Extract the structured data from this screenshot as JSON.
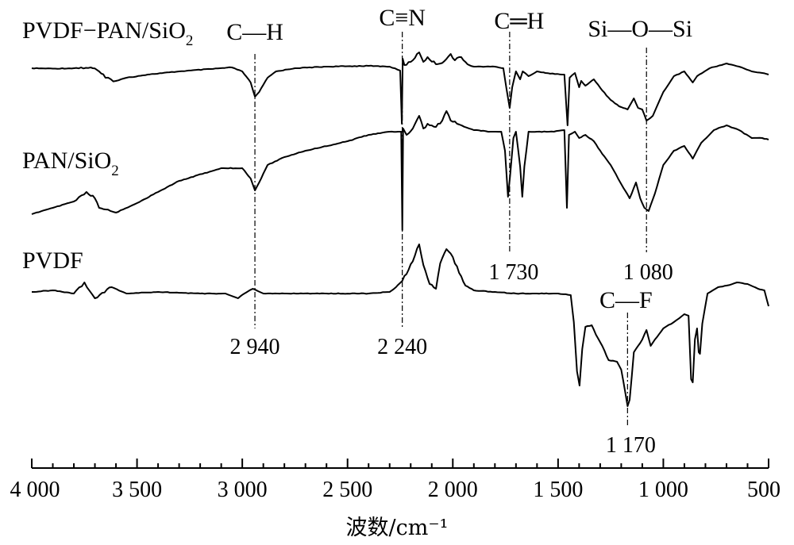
{
  "chart_data": {
    "type": "line",
    "title": "",
    "xlabel": "波数/cm⁻¹",
    "ylabel": "",
    "x_reversed": true,
    "xlim": [
      4000,
      500
    ],
    "x_ticks": [
      {
        "value": 4000,
        "label": "4 000"
      },
      {
        "value": 3500,
        "label": "3 500"
      },
      {
        "value": 3000,
        "label": "3 000"
      },
      {
        "value": 2500,
        "label": "2 500"
      },
      {
        "value": 2000,
        "label": "2 000"
      },
      {
        "value": 1500,
        "label": "1 500"
      },
      {
        "value": 1000,
        "label": "1 000"
      },
      {
        "value": 500,
        "label": "500"
      }
    ],
    "series": [
      {
        "name": "PVDF−PAN/SiO",
        "name_sub": "2",
        "offset": 0,
        "points": [
          [
            4000,
            0
          ],
          [
            3900,
            0.5
          ],
          [
            3800,
            0
          ],
          [
            3720,
            -1
          ],
          [
            3680,
            4
          ],
          [
            3650,
            12
          ],
          [
            3600,
            16
          ],
          [
            3550,
            12
          ],
          [
            3450,
            8
          ],
          [
            3300,
            4
          ],
          [
            3150,
            1
          ],
          [
            3050,
            -1
          ],
          [
            3000,
            4
          ],
          [
            2960,
            18
          ],
          [
            2940,
            36
          ],
          [
            2920,
            30
          ],
          [
            2880,
            12
          ],
          [
            2840,
            4
          ],
          [
            2750,
            0
          ],
          [
            2600,
            -2
          ],
          [
            2400,
            -3
          ],
          [
            2300,
            -2
          ],
          [
            2250,
            3
          ],
          [
            2242,
            70
          ],
          [
            2238,
            -12
          ],
          [
            2230,
            -4
          ],
          [
            2200,
            -8
          ],
          [
            2160,
            -20
          ],
          [
            2140,
            -8
          ],
          [
            2120,
            -14
          ],
          [
            2080,
            -5
          ],
          [
            2040,
            -9
          ],
          [
            2010,
            -18
          ],
          [
            1990,
            -10
          ],
          [
            1960,
            -14
          ],
          [
            1930,
            -5
          ],
          [
            1900,
            -2
          ],
          [
            1800,
            -2
          ],
          [
            1760,
            0
          ],
          [
            1745,
            26
          ],
          [
            1730,
            50
          ],
          [
            1718,
            24
          ],
          [
            1700,
            4
          ],
          [
            1680,
            14
          ],
          [
            1668,
            4
          ],
          [
            1640,
            10
          ],
          [
            1600,
            4
          ],
          [
            1560,
            6
          ],
          [
            1470,
            8
          ],
          [
            1455,
            72
          ],
          [
            1445,
            12
          ],
          [
            1420,
            6
          ],
          [
            1400,
            24
          ],
          [
            1390,
            16
          ],
          [
            1370,
            22
          ],
          [
            1330,
            14
          ],
          [
            1290,
            28
          ],
          [
            1250,
            40
          ],
          [
            1210,
            48
          ],
          [
            1170,
            52
          ],
          [
            1140,
            38
          ],
          [
            1120,
            50
          ],
          [
            1100,
            52
          ],
          [
            1080,
            66
          ],
          [
            1050,
            60
          ],
          [
            1000,
            30
          ],
          [
            950,
            10
          ],
          [
            900,
            4
          ],
          [
            860,
            18
          ],
          [
            840,
            10
          ],
          [
            780,
            0
          ],
          [
            700,
            -6
          ],
          [
            640,
            -2
          ],
          [
            580,
            4
          ],
          [
            530,
            6
          ],
          [
            500,
            8
          ]
        ]
      },
      {
        "name": "PAN/SiO",
        "name_sub": "2",
        "offset": 0,
        "points": [
          [
            4000,
            0
          ],
          [
            3900,
            -8
          ],
          [
            3800,
            -16
          ],
          [
            3740,
            -28
          ],
          [
            3700,
            -20
          ],
          [
            3680,
            -8
          ],
          [
            3650,
            -6
          ],
          [
            3600,
            -2
          ],
          [
            3500,
            -14
          ],
          [
            3300,
            -42
          ],
          [
            3100,
            -58
          ],
          [
            3000,
            -58
          ],
          [
            2960,
            -45
          ],
          [
            2940,
            -30
          ],
          [
            2920,
            -40
          ],
          [
            2880,
            -62
          ],
          [
            2800,
            -72
          ],
          [
            2700,
            -80
          ],
          [
            2500,
            -92
          ],
          [
            2400,
            -100
          ],
          [
            2300,
            -104
          ],
          [
            2260,
            -104
          ],
          [
            2245,
            -104
          ],
          [
            2240,
            20
          ],
          [
            2236,
            -108
          ],
          [
            2220,
            -100
          ],
          [
            2190,
            -108
          ],
          [
            2160,
            -124
          ],
          [
            2140,
            -108
          ],
          [
            2120,
            -114
          ],
          [
            2080,
            -110
          ],
          [
            2050,
            -118
          ],
          [
            2030,
            -130
          ],
          [
            2010,
            -118
          ],
          [
            1980,
            -114
          ],
          [
            1900,
            -106
          ],
          [
            1820,
            -104
          ],
          [
            1770,
            -104
          ],
          [
            1752,
            -80
          ],
          [
            1738,
            -22
          ],
          [
            1728,
            -48
          ],
          [
            1712,
            -96
          ],
          [
            1700,
            -104
          ],
          [
            1680,
            -60
          ],
          [
            1670,
            -22
          ],
          [
            1660,
            -60
          ],
          [
            1640,
            -104
          ],
          [
            1600,
            -104
          ],
          [
            1520,
            -104
          ],
          [
            1470,
            -106
          ],
          [
            1458,
            -8
          ],
          [
            1448,
            -100
          ],
          [
            1420,
            -104
          ],
          [
            1400,
            -96
          ],
          [
            1370,
            -100
          ],
          [
            1330,
            -92
          ],
          [
            1290,
            -76
          ],
          [
            1250,
            -62
          ],
          [
            1200,
            -38
          ],
          [
            1160,
            -20
          ],
          [
            1130,
            -40
          ],
          [
            1110,
            -20
          ],
          [
            1090,
            -8
          ],
          [
            1070,
            -4
          ],
          [
            1040,
            -26
          ],
          [
            1000,
            -62
          ],
          [
            950,
            -80
          ],
          [
            900,
            -86
          ],
          [
            860,
            -70
          ],
          [
            820,
            -90
          ],
          [
            760,
            -106
          ],
          [
            700,
            -112
          ],
          [
            640,
            -106
          ],
          [
            580,
            -96
          ],
          [
            530,
            -96
          ],
          [
            500,
            -94
          ]
        ]
      },
      {
        "name": "PVDF",
        "offset": 0,
        "points": [
          [
            4000,
            0
          ],
          [
            3900,
            -2
          ],
          [
            3800,
            2
          ],
          [
            3750,
            -12
          ],
          [
            3700,
            8
          ],
          [
            3620,
            -6
          ],
          [
            3550,
            2
          ],
          [
            3400,
            0
          ],
          [
            3200,
            2
          ],
          [
            3080,
            2
          ],
          [
            3020,
            8
          ],
          [
            2990,
            2
          ],
          [
            2950,
            -4
          ],
          [
            2900,
            2
          ],
          [
            2800,
            2
          ],
          [
            2600,
            2
          ],
          [
            2400,
            2
          ],
          [
            2300,
            0
          ],
          [
            2270,
            -6
          ],
          [
            2240,
            -14
          ],
          [
            2210,
            -28
          ],
          [
            2180,
            -46
          ],
          [
            2160,
            -60
          ],
          [
            2140,
            -34
          ],
          [
            2110,
            -10
          ],
          [
            2080,
            -4
          ],
          [
            2060,
            -36
          ],
          [
            2030,
            -54
          ],
          [
            2000,
            -44
          ],
          [
            1970,
            -24
          ],
          [
            1940,
            -8
          ],
          [
            1900,
            -2
          ],
          [
            1800,
            0
          ],
          [
            1700,
            2
          ],
          [
            1600,
            2
          ],
          [
            1500,
            2
          ],
          [
            1440,
            4
          ],
          [
            1425,
            38
          ],
          [
            1410,
            100
          ],
          [
            1398,
            118
          ],
          [
            1385,
            72
          ],
          [
            1370,
            44
          ],
          [
            1340,
            42
          ],
          [
            1320,
            54
          ],
          [
            1290,
            68
          ],
          [
            1260,
            86
          ],
          [
            1220,
            88
          ],
          [
            1200,
            98
          ],
          [
            1180,
            128
          ],
          [
            1170,
            144
          ],
          [
            1160,
            136
          ],
          [
            1140,
            76
          ],
          [
            1100,
            60
          ],
          [
            1080,
            48
          ],
          [
            1060,
            68
          ],
          [
            1040,
            60
          ],
          [
            1000,
            46
          ],
          [
            950,
            38
          ],
          [
            900,
            28
          ],
          [
            880,
            30
          ],
          [
            868,
            110
          ],
          [
            860,
            114
          ],
          [
            850,
            60
          ],
          [
            840,
            46
          ],
          [
            832,
            76
          ],
          [
            826,
            78
          ],
          [
            815,
            40
          ],
          [
            790,
            2
          ],
          [
            740,
            -6
          ],
          [
            700,
            -8
          ],
          [
            650,
            -12
          ],
          [
            600,
            -10
          ],
          [
            550,
            -4
          ],
          [
            520,
            -2
          ],
          [
            500,
            18
          ]
        ]
      }
    ],
    "annotations": [
      {
        "label": "C—H",
        "wavenumber_label": "2 940",
        "wavenumber": 2940
      },
      {
        "label": "C≡N",
        "wavenumber_label": "2 240",
        "wavenumber": 2240
      },
      {
        "label": "C═H",
        "wavenumber_label": "1 730",
        "wavenumber": 1730
      },
      {
        "label": "Si—O—Si",
        "wavenumber_label": "1 080",
        "wavenumber": 1080
      },
      {
        "label": "C—F",
        "wavenumber_label": "1 170",
        "wavenumber": 1170
      }
    ]
  }
}
